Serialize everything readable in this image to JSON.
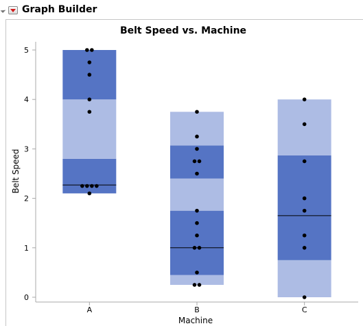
{
  "header": {
    "title": "Graph Builder"
  },
  "colors": {
    "box_dark": "#5574c4",
    "box_light": "#adbce4",
    "point": "#000000",
    "median": "#000000",
    "axis": "#a8a8a8"
  },
  "icons": {
    "disclosure": "disclosure-triangle-icon",
    "menu": "red-triangle-menu-icon"
  },
  "chart_data": {
    "type": "box_plot",
    "title": "Belt Speed vs. Machine",
    "xlabel": "Machine",
    "ylabel": "Belt Speed",
    "ylim": [
      0,
      5
    ],
    "yticks": [
      0,
      1,
      2,
      3,
      4,
      5
    ],
    "categories": [
      "A",
      "B",
      "C"
    ],
    "grid": false,
    "boxes": [
      {
        "category": "A",
        "bands": [
          [
            2.1,
            2.8,
            "dark"
          ],
          [
            2.8,
            4.0,
            "light"
          ],
          [
            4.0,
            5.0,
            "dark"
          ]
        ],
        "median": 2.27,
        "points": [
          5.0,
          5.0,
          4.75,
          4.5,
          4.0,
          3.75,
          2.25,
          2.25,
          2.25,
          2.25,
          2.1
        ]
      },
      {
        "category": "B",
        "bands": [
          [
            0.25,
            0.45,
            "light"
          ],
          [
            0.45,
            1.75,
            "dark"
          ],
          [
            1.75,
            2.4,
            "light"
          ],
          [
            2.4,
            3.07,
            "dark"
          ],
          [
            3.07,
            3.75,
            "light"
          ]
        ],
        "median": 1.0,
        "points": [
          3.75,
          3.25,
          3.0,
          2.75,
          2.75,
          2.5,
          1.75,
          1.5,
          1.25,
          1.0,
          1.0,
          0.5,
          0.25,
          0.25
        ]
      },
      {
        "category": "C",
        "bands": [
          [
            0.0,
            0.75,
            "light"
          ],
          [
            0.75,
            2.87,
            "dark"
          ],
          [
            2.87,
            4.0,
            "light"
          ]
        ],
        "median": 1.65,
        "points": [
          4.0,
          3.5,
          2.75,
          2.0,
          1.75,
          1.25,
          1.0,
          0.0
        ]
      }
    ]
  }
}
